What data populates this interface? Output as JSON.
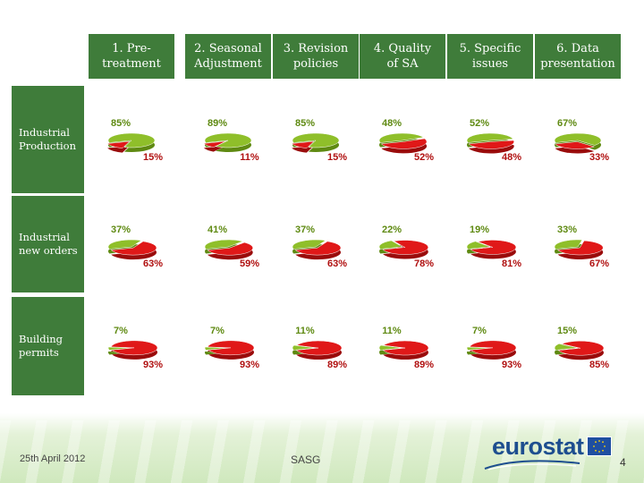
{
  "columns": [
    "1. Pre-\ntreatment",
    "2. Seasonal\nAdjustment",
    "3. Revision\npolicies",
    "4. Quality\nof SA",
    "5. Specific\nissues",
    "6. Data\npresentation"
  ],
  "rows": [
    "Industrial\nProduction",
    "Industrial\nnew orders",
    "Building\npermits"
  ],
  "colors": {
    "green": "#8fbf2a",
    "green_dark": "#5f8a12",
    "red": "#e01818",
    "red_dark": "#9a0c0c",
    "header_bg": "#3f7c3a"
  },
  "chart_data": {
    "type": "pie",
    "series_note_labels": [],
    "grid": [
      [
        {
          "values": [
            85,
            15
          ],
          "labels": [
            "85%",
            "15%"
          ]
        },
        {
          "values": [
            89,
            11
          ],
          "labels": [
            "89%",
            "11%"
          ]
        },
        {
          "values": [
            85,
            15
          ],
          "labels": [
            "85%",
            "15%"
          ]
        },
        {
          "values": [
            48,
            52
          ],
          "labels": [
            "48%",
            "52%"
          ]
        },
        {
          "values": [
            52,
            48
          ],
          "labels": [
            "52%",
            "48%"
          ]
        },
        {
          "values": [
            67,
            33
          ],
          "labels": [
            "67%",
            "33%"
          ]
        }
      ],
      [
        {
          "values": [
            37,
            63
          ],
          "labels": [
            "37%",
            "63%"
          ]
        },
        {
          "values": [
            41,
            59
          ],
          "labels": [
            "41%",
            "59%"
          ]
        },
        {
          "values": [
            37,
            63
          ],
          "labels": [
            "37%",
            "63%"
          ]
        },
        {
          "values": [
            22,
            78
          ],
          "labels": [
            "22%",
            "78%"
          ]
        },
        {
          "values": [
            19,
            81
          ],
          "labels": [
            "19%",
            "81%"
          ]
        },
        {
          "values": [
            33,
            67
          ],
          "labels": [
            "33%",
            "67%"
          ]
        }
      ],
      [
        {
          "values": [
            7,
            93
          ],
          "labels": [
            "7%",
            "93%"
          ]
        },
        {
          "values": [
            7,
            93
          ],
          "labels": [
            "7%",
            "93%"
          ]
        },
        {
          "values": [
            11,
            89
          ],
          "labels": [
            "11%",
            "89%"
          ]
        },
        {
          "values": [
            11,
            89
          ],
          "labels": [
            "11%",
            "89%"
          ]
        },
        {
          "values": [
            7,
            93
          ],
          "labels": [
            "7%",
            "93%"
          ]
        },
        {
          "values": [
            15,
            85
          ],
          "labels": [
            "15%",
            "85%"
          ]
        }
      ]
    ]
  },
  "footer": {
    "date": "25th April 2012",
    "center": "SASG",
    "page": "4",
    "logo": "eurostat"
  }
}
